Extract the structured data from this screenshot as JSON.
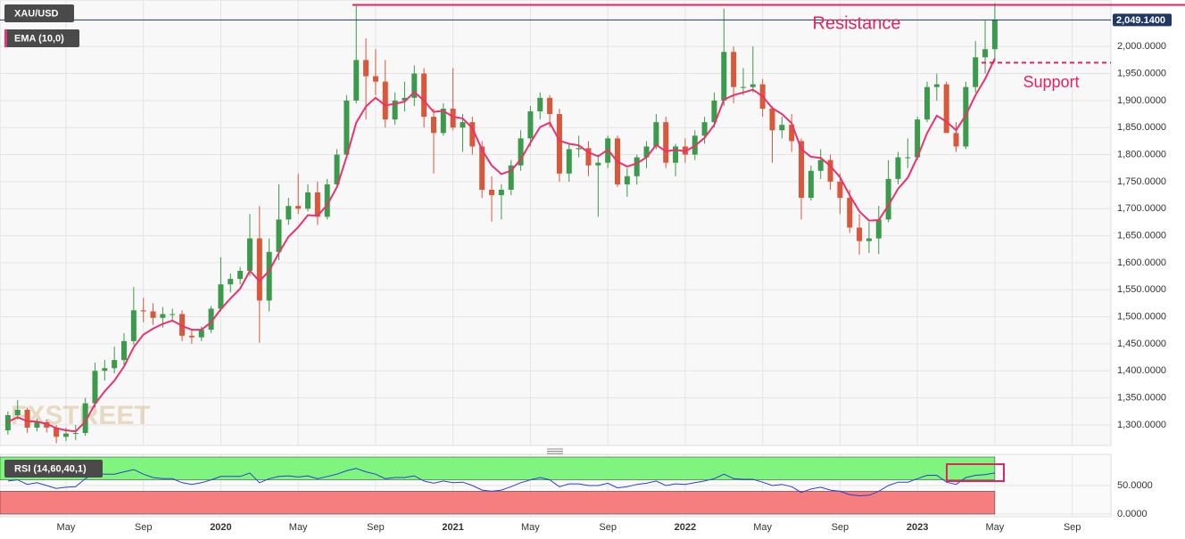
{
  "chart_data": {
    "type": "candlestick",
    "x": [
      1,
      1.5,
      2,
      2.5,
      3,
      3.5,
      4,
      4.5,
      5,
      5.5,
      6,
      6.5,
      7,
      7.5,
      8,
      8.5,
      9,
      9.5,
      10,
      10.5,
      11,
      11.5,
      12,
      12.5,
      13,
      13.5,
      14,
      14.5,
      15,
      15.5,
      16,
      16.5,
      17,
      17.5,
      18,
      18.5,
      19,
      19.5,
      20,
      20.5,
      21,
      21.5,
      22,
      22.5,
      23,
      23.5,
      24,
      24.5,
      25,
      25.5,
      26,
      26.5,
      27,
      27.5,
      28,
      28.5,
      29,
      29.5,
      30,
      30.5,
      31,
      31.5,
      32,
      32.5,
      33,
      33.5,
      34,
      34.5,
      35,
      35.5,
      36,
      36.5,
      37,
      37.5,
      38,
      38.5,
      39,
      39.5,
      40,
      40.5,
      41,
      41.5,
      42,
      42.5,
      43,
      43.5,
      44,
      44.5,
      45,
      45.5,
      46,
      46.5,
      47,
      47.5,
      48,
      48.5,
      49,
      49.5,
      50,
      50.5,
      51,
      51.5,
      52
    ],
    "xlim": [
      0.59,
      58
    ],
    "xticks": [
      {
        "value": 4,
        "label": "May"
      },
      {
        "value": 8,
        "label": "Sep"
      },
      {
        "value": 12,
        "label": "2020"
      },
      {
        "value": 16,
        "label": "May"
      },
      {
        "value": 20,
        "label": "Sep"
      },
      {
        "value": 24,
        "label": "2021"
      },
      {
        "value": 28,
        "label": "May"
      },
      {
        "value": 32,
        "label": "Sep"
      },
      {
        "value": 36,
        "label": "2022"
      },
      {
        "value": 40,
        "label": "May"
      },
      {
        "value": 44,
        "label": "Sep"
      },
      {
        "value": 48,
        "label": "2023"
      },
      {
        "value": 52,
        "label": "May"
      },
      {
        "value": 56,
        "label": "Sep"
      }
    ],
    "ylim": [
      1262,
      2086
    ],
    "yticks": [
      {
        "value": 1300,
        "label": "1,300.0000"
      },
      {
        "value": 1350,
        "label": "1,350.0000"
      },
      {
        "value": 1400,
        "label": "1,400.0000"
      },
      {
        "value": 1450,
        "label": "1,450.0000"
      },
      {
        "value": 1500,
        "label": "1,500.0000"
      },
      {
        "value": 1550,
        "label": "1,550.0000"
      },
      {
        "value": 1600,
        "label": "1,600.0000"
      },
      {
        "value": 1650,
        "label": "1,650.0000"
      },
      {
        "value": 1700,
        "label": "1,700.0000"
      },
      {
        "value": 1750,
        "label": "1,750.0000"
      },
      {
        "value": 1800,
        "label": "1,800.0000"
      },
      {
        "value": 1850,
        "label": "1,850.0000"
      },
      {
        "value": 1900,
        "label": "1,900.0000"
      },
      {
        "value": 1950,
        "label": "1,950.0000"
      },
      {
        "value": 2000,
        "label": "2,000.0000"
      }
    ],
    "grid": true,
    "series": [
      {
        "name": "XAU/USD",
        "up_color": "#3b9a4c",
        "down_color": "#d9573b",
        "ohlc": [
          [
            1290,
            1325,
            1282,
            1318
          ],
          [
            1318,
            1346,
            1310,
            1328
          ],
          [
            1328,
            1332,
            1285,
            1295
          ],
          [
            1295,
            1312,
            1288,
            1305
          ],
          [
            1305,
            1310,
            1286,
            1295
          ],
          [
            1295,
            1300,
            1266,
            1278
          ],
          [
            1278,
            1295,
            1270,
            1284
          ],
          [
            1284,
            1300,
            1272,
            1285
          ],
          [
            1285,
            1350,
            1280,
            1340
          ],
          [
            1340,
            1415,
            1332,
            1400
          ],
          [
            1400,
            1420,
            1382,
            1405
          ],
          [
            1405,
            1445,
            1395,
            1420
          ],
          [
            1420,
            1470,
            1410,
            1455
          ],
          [
            1455,
            1555,
            1448,
            1512
          ],
          [
            1512,
            1535,
            1490,
            1510
          ],
          [
            1510,
            1525,
            1485,
            1498
          ],
          [
            1498,
            1518,
            1480,
            1505
          ],
          [
            1505,
            1515,
            1490,
            1505
          ],
          [
            1505,
            1512,
            1455,
            1465
          ],
          [
            1465,
            1478,
            1450,
            1462
          ],
          [
            1462,
            1482,
            1455,
            1476
          ],
          [
            1476,
            1520,
            1470,
            1515
          ],
          [
            1515,
            1610,
            1510,
            1560
          ],
          [
            1560,
            1580,
            1545,
            1570
          ],
          [
            1570,
            1592,
            1560,
            1585
          ],
          [
            1585,
            1690,
            1575,
            1645
          ],
          [
            1645,
            1705,
            1452,
            1530
          ],
          [
            1530,
            1645,
            1510,
            1620
          ],
          [
            1620,
            1745,
            1605,
            1680
          ],
          [
            1680,
            1720,
            1670,
            1705
          ],
          [
            1705,
            1765,
            1690,
            1700
          ],
          [
            1700,
            1745,
            1695,
            1730
          ],
          [
            1730,
            1750,
            1670,
            1685
          ],
          [
            1685,
            1755,
            1680,
            1745
          ],
          [
            1745,
            1810,
            1740,
            1800
          ],
          [
            1800,
            1910,
            1795,
            1900
          ],
          [
            1900,
            2075,
            1895,
            1975
          ],
          [
            1975,
            2015,
            1865,
            1945
          ],
          [
            1945,
            1995,
            1910,
            1935
          ],
          [
            1935,
            1975,
            1850,
            1865
          ],
          [
            1865,
            1915,
            1855,
            1900
          ],
          [
            1900,
            1935,
            1880,
            1905
          ],
          [
            1905,
            1965,
            1890,
            1950
          ],
          [
            1950,
            1960,
            1850,
            1870
          ],
          [
            1870,
            1885,
            1765,
            1840
          ],
          [
            1840,
            1895,
            1835,
            1885
          ],
          [
            1885,
            1960,
            1845,
            1850
          ],
          [
            1850,
            1875,
            1805,
            1860
          ],
          [
            1860,
            1870,
            1800,
            1815
          ],
          [
            1815,
            1825,
            1720,
            1735
          ],
          [
            1735,
            1760,
            1676,
            1725
          ],
          [
            1725,
            1745,
            1680,
            1735
          ],
          [
            1735,
            1790,
            1725,
            1780
          ],
          [
            1780,
            1845,
            1770,
            1830
          ],
          [
            1830,
            1890,
            1815,
            1880
          ],
          [
            1880,
            1915,
            1865,
            1905
          ],
          [
            1905,
            1910,
            1850,
            1875
          ],
          [
            1875,
            1885,
            1750,
            1765
          ],
          [
            1765,
            1820,
            1750,
            1810
          ],
          [
            1810,
            1835,
            1795,
            1812
          ],
          [
            1812,
            1825,
            1760,
            1780
          ],
          [
            1780,
            1800,
            1685,
            1785
          ],
          [
            1785,
            1835,
            1775,
            1830
          ],
          [
            1830,
            1835,
            1740,
            1745
          ],
          [
            1745,
            1775,
            1722,
            1760
          ],
          [
            1760,
            1800,
            1745,
            1795
          ],
          [
            1795,
            1825,
            1775,
            1815
          ],
          [
            1815,
            1875,
            1810,
            1860
          ],
          [
            1860,
            1870,
            1775,
            1785
          ],
          [
            1785,
            1820,
            1760,
            1815
          ],
          [
            1815,
            1830,
            1785,
            1800
          ],
          [
            1800,
            1845,
            1790,
            1835
          ],
          [
            1835,
            1870,
            1820,
            1860
          ],
          [
            1860,
            1915,
            1850,
            1900
          ],
          [
            1900,
            2070,
            1890,
            1990
          ],
          [
            1990,
            2000,
            1895,
            1925
          ],
          [
            1925,
            1960,
            1910,
            1925
          ],
          [
            1925,
            2000,
            1915,
            1930
          ],
          [
            1930,
            1940,
            1870,
            1885
          ],
          [
            1885,
            1890,
            1785,
            1845
          ],
          [
            1845,
            1870,
            1830,
            1855
          ],
          [
            1855,
            1875,
            1805,
            1825
          ],
          [
            1825,
            1830,
            1680,
            1720
          ],
          [
            1720,
            1780,
            1715,
            1770
          ],
          [
            1770,
            1810,
            1755,
            1790
          ],
          [
            1790,
            1800,
            1735,
            1750
          ],
          [
            1750,
            1765,
            1690,
            1720
          ],
          [
            1720,
            1735,
            1655,
            1665
          ],
          [
            1665,
            1690,
            1615,
            1640
          ],
          [
            1640,
            1675,
            1618,
            1645
          ],
          [
            1645,
            1705,
            1616,
            1680
          ],
          [
            1680,
            1790,
            1675,
            1755
          ],
          [
            1755,
            1805,
            1745,
            1795
          ],
          [
            1795,
            1830,
            1775,
            1795
          ],
          [
            1795,
            1870,
            1790,
            1865
          ],
          [
            1865,
            1935,
            1860,
            1925
          ],
          [
            1925,
            1950,
            1900,
            1930
          ],
          [
            1930,
            1935,
            1840,
            1840
          ],
          [
            1840,
            1860,
            1805,
            1815
          ],
          [
            1815,
            1935,
            1810,
            1925
          ],
          [
            1925,
            2010,
            1915,
            1980
          ],
          [
            1980,
            2048,
            1950,
            1995
          ],
          [
            1995,
            2080,
            1970,
            2049.14
          ]
        ]
      },
      {
        "name": "EMA (10,0)",
        "color": "#e8336d",
        "values": [
          1306,
          1314,
          1307,
          1306,
          1302,
          1294,
          1290,
          1288,
          1306,
          1339,
          1362,
          1382,
          1408,
          1444,
          1467,
          1478,
          1487,
          1493,
          1483,
          1476,
          1476,
          1490,
          1514,
          1534,
          1552,
          1585,
          1566,
          1585,
          1618,
          1648,
          1666,
          1688,
          1687,
          1707,
          1740,
          1796,
          1859,
          1889,
          1905,
          1891,
          1894,
          1898,
          1916,
          1900,
          1879,
          1881,
          1870,
          1867,
          1849,
          1809,
          1780,
          1764,
          1770,
          1791,
          1822,
          1851,
          1859,
          1826,
          1820,
          1817,
          1804,
          1797,
          1809,
          1787,
          1778,
          1784,
          1795,
          1818,
          1806,
          1809,
          1806,
          1816,
          1831,
          1855,
          1902,
          1910,
          1915,
          1920,
          1908,
          1886,
          1875,
          1858,
          1810,
          1796,
          1794,
          1779,
          1758,
          1725,
          1695,
          1678,
          1679,
          1706,
          1737,
          1757,
          1795,
          1840,
          1872,
          1861,
          1845,
          1873,
          1910,
          1940,
          1978
        ]
      }
    ],
    "last_price": {
      "value": 2049.14,
      "label": "2,049.1400",
      "color": "#1f3864"
    },
    "annotations": [
      {
        "text": "Resistance",
        "value": 2077,
        "color": "#e0245e",
        "dashed": false
      },
      {
        "text": "Support",
        "value": 1970,
        "color": "#e0245e",
        "dashed": true
      }
    ],
    "watermark": "FXSTREET",
    "rsi": {
      "name": "RSI (14,60,40,1)",
      "color": "#2a3fd0",
      "values": [
        58,
        60,
        52,
        55,
        50,
        45,
        47,
        48,
        62,
        72,
        70,
        70,
        74,
        78,
        70,
        64,
        62,
        62,
        55,
        52,
        55,
        60,
        66,
        66,
        66,
        72,
        55,
        62,
        66,
        67,
        65,
        67,
        62,
        66,
        70,
        76,
        80,
        74,
        70,
        62,
        64,
        64,
        67,
        58,
        54,
        58,
        55,
        56,
        50,
        42,
        40,
        42,
        48,
        55,
        60,
        64,
        60,
        48,
        53,
        53,
        50,
        50,
        54,
        46,
        48,
        52,
        54,
        58,
        50,
        53,
        52,
        55,
        58,
        62,
        70,
        62,
        61,
        61,
        56,
        50,
        52,
        48,
        38,
        44,
        47,
        42,
        40,
        34,
        32,
        33,
        40,
        50,
        56,
        56,
        62,
        68,
        68,
        56,
        52,
        64,
        68,
        69,
        72
      ],
      "ylim": [
        0,
        105
      ],
      "yticks": [
        {
          "value": 0,
          "label": "0.0000"
        },
        {
          "value": 50,
          "label": "50.0000"
        }
      ],
      "zones": [
        {
          "from": 60,
          "to": 100,
          "color": "#7ff57f"
        },
        {
          "from": 0,
          "to": 40,
          "color": "#f77e7e"
        }
      ]
    }
  }
}
